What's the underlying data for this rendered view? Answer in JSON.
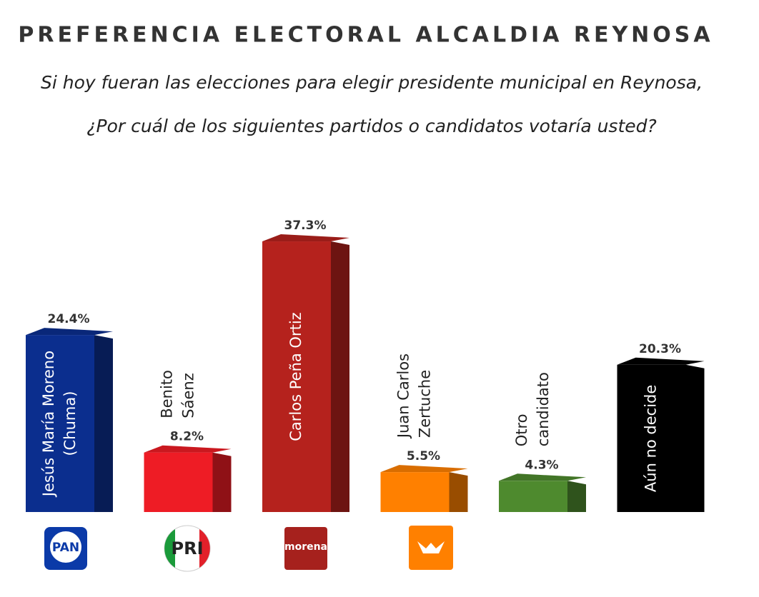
{
  "chart_data": {
    "type": "bar",
    "title": "PREFERENCIA ELECTORAL ALCALDIA REYNOSA",
    "subtitle": [
      "Si hoy fueran las elecciones para elegir presidente municipal en Reynosa,",
      "¿Por cuál de los siguientes partidos o candidatos votaría usted?"
    ],
    "categories": [
      [
        "Jesús María Moreno",
        "(Chuma)"
      ],
      [
        "Benito",
        "Sáenz"
      ],
      [
        "Carlos Peña Ortiz"
      ],
      [
        "Juan Carlos",
        "Zertuche"
      ],
      [
        "Otro",
        "candidato"
      ],
      [
        "Aún no decide"
      ]
    ],
    "values": [
      24.4,
      8.2,
      37.3,
      5.5,
      4.3,
      20.3
    ],
    "value_labels": [
      "24.4%",
      "8.2%",
      "37.3%",
      "5.5%",
      "4.3%",
      "20.3%"
    ],
    "colors": [
      "#0b2e8e",
      "#ee1c25",
      "#b5221d",
      "#ff8000",
      "#4e8a2e",
      "#000000"
    ],
    "logos": [
      "PAN",
      "PRI",
      "morena"
    ]
  }
}
